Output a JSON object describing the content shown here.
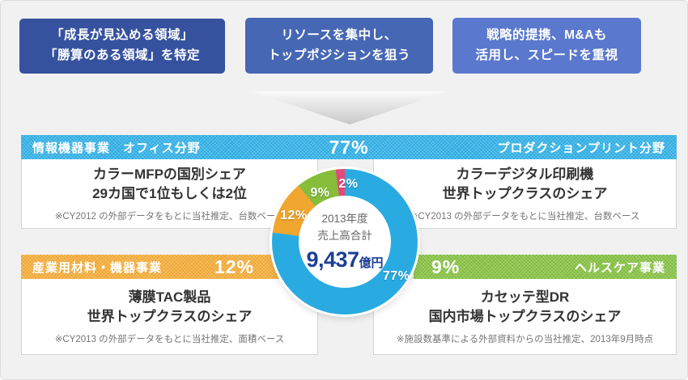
{
  "colors": {
    "page_bg": "#f1f1f1",
    "box1": "#36529f",
    "box2": "#4667b4",
    "box3": "#5a78cd",
    "band_blue": "#29abe2",
    "band_orange": "#f0a62f",
    "band_green": "#7fbc3a",
    "pink": "#e24a7c",
    "value_navy": "#1d3e94"
  },
  "strategy_boxes": [
    {
      "line1": "「成長が見込める領域」",
      "line2": "「勝算のある領域」を特定"
    },
    {
      "line1": "リソースを集中し、",
      "line2": "トップポジションを狙う"
    },
    {
      "line1": "戦略的提携、M&Aも",
      "line2": "活用し、スピードを重視"
    }
  ],
  "it_band": {
    "left": "情報機器事業　オフィス分野",
    "pct": "77%",
    "right": "プロダクションプリント分野"
  },
  "office_panel": {
    "line1": "カラーMFPの国別シェア",
    "line2": "29カ国で1位もしくは2位",
    "note": "※CY2012 の外部データをもとに当社推定、台数ベース"
  },
  "production_panel": {
    "line1": "カラーデジタル印刷機",
    "line2": "世界トップクラスのシェア",
    "note": "※CY2013 の外部データをもとに当社推定、台数ベース"
  },
  "industrial_band": {
    "label": "産業用材料・機器事業",
    "pct": "12%"
  },
  "industrial_panel": {
    "line1": "薄膜TAC製品",
    "line2": "世界トップクラスのシェア",
    "note": "※CY2013 の外部データをもとに当社推定、面積ベース"
  },
  "healthcare_band": {
    "pct": "9%",
    "label": "ヘルスケア事業"
  },
  "healthcare_panel": {
    "line1": "カセッテ型DR",
    "line2": "国内市場トップクラスのシェア",
    "note": "※施設数基準による外部資料からの当社推定、2013年9月時点"
  },
  "chart_data": {
    "type": "pie",
    "donut": true,
    "title": "2013年度 売上高合計 9,437億円",
    "start_angle_deg": 0,
    "direction": "clockwise",
    "center_label": {
      "line1": "2013年度",
      "line2": "売上高合計",
      "value": "9,437",
      "unit": "億円"
    },
    "segments": [
      {
        "label": "情報機器事業",
        "value": 77,
        "display": "77%",
        "color": "#29abe2"
      },
      {
        "label": "産業用材料・機器事業",
        "value": 12,
        "display": "12%",
        "color": "#f0a62f"
      },
      {
        "label": "ヘルスケア事業",
        "value": 9,
        "display": "9%",
        "color": "#86bd3a"
      },
      {
        "label": "",
        "value": 2,
        "display": "2%",
        "color": "#e24a7c"
      }
    ]
  }
}
